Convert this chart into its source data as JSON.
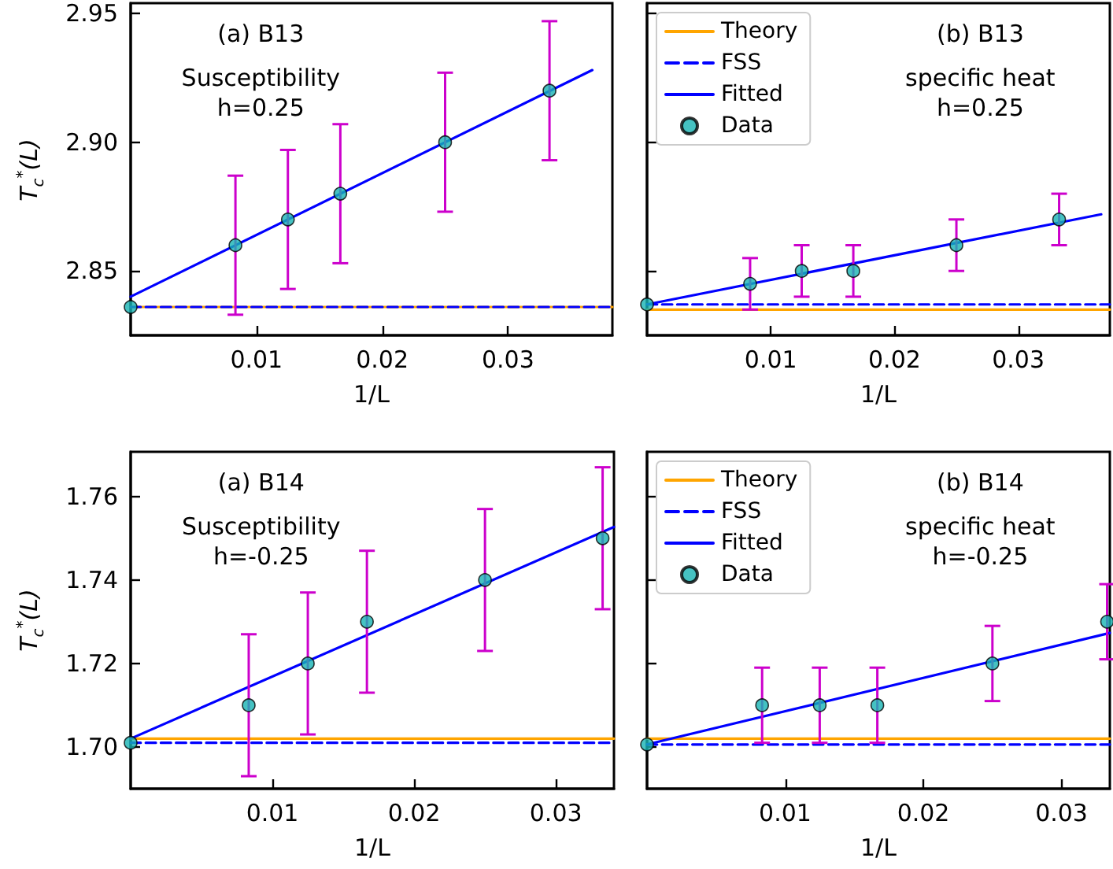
{
  "chart_data": [
    {
      "type": "line",
      "annotations": [
        "(a) B13",
        "Susceptibility",
        "h=0.25"
      ],
      "xlabel": "1/L",
      "ylabel": "T$_{c}$$^{*}$(L)",
      "xlim": [
        0,
        0.0383
      ],
      "xticks": [
        0.01,
        0.02,
        0.03
      ],
      "ylim": [
        2.825,
        2.954
      ],
      "yticks": [
        {
          "value": 2.85,
          "label": "2.85"
        },
        {
          "value": 2.9,
          "label": "2.90"
        },
        {
          "value": 2.95,
          "label": "2.95"
        }
      ],
      "series": [
        {
          "type": "line",
          "color": "#ffa500",
          "line_style": "solid",
          "x": [
            0,
            0.0383
          ],
          "values": [
            2.836,
            2.836
          ]
        },
        {
          "type": "line",
          "color": "#0000ff",
          "line_style": "dashed",
          "x": [
            0,
            0.0383
          ],
          "values": [
            2.836,
            2.836
          ]
        },
        {
          "type": "line",
          "color": "#0000ff",
          "line_style": "solid",
          "x": [
            0,
            0.0367
          ],
          "values": [
            2.84,
            2.928
          ]
        },
        {
          "type": "scatter",
          "color": "#17b3b3",
          "marker": "circle",
          "x": [
            0,
            0.00833,
            0.0125,
            0.01667,
            0.025,
            0.0333
          ],
          "values": [
            2.836,
            2.86,
            2.87,
            2.88,
            2.9,
            2.92
          ],
          "errors": [
            null,
            0.027,
            0.027,
            0.027,
            0.027,
            0.027
          ]
        }
      ]
    },
    {
      "type": "line",
      "annotations": [
        "(b) B13",
        "specific heat",
        "h=0.25"
      ],
      "xlabel": "1/L",
      "xlim": [
        0,
        0.0374
      ],
      "xticks": [
        0.01,
        0.02,
        0.03
      ],
      "ylim": [
        2.825,
        2.954
      ],
      "yticks": [
        {
          "value": 2.85,
          "label": null
        },
        {
          "value": 2.9,
          "label": null
        },
        {
          "value": 2.95,
          "label": null
        }
      ],
      "tick_labels": "x",
      "legend": "top left",
      "series": [
        {
          "name": "Theory",
          "type": "line",
          "color": "#ffa500",
          "line_style": "solid",
          "x": [
            0,
            0.0374
          ],
          "values": [
            2.835,
            2.835
          ]
        },
        {
          "name": "FSS",
          "type": "line",
          "color": "#0000ff",
          "line_style": "dashed",
          "x": [
            0,
            0.0374
          ],
          "values": [
            2.837,
            2.837
          ]
        },
        {
          "name": "Fitted",
          "type": "line",
          "color": "#0000ff",
          "line_style": "solid",
          "x": [
            0,
            0.0367
          ],
          "values": [
            2.837,
            2.872
          ]
        },
        {
          "name": "Data",
          "type": "scatter",
          "color": "#17b3b3",
          "marker": "circle",
          "x": [
            0,
            0.00833,
            0.0125,
            0.01667,
            0.025,
            0.0333
          ],
          "values": [
            2.837,
            2.845,
            2.85,
            2.85,
            2.86,
            2.87
          ],
          "errors": [
            null,
            0.01,
            0.01,
            0.01,
            0.01,
            0.01
          ]
        }
      ]
    },
    {
      "type": "line",
      "annotations": [
        "(a) B14",
        "Susceptibility",
        "h=-0.25"
      ],
      "xlabel": "1/L",
      "ylabel": "T$_{c}$$^{*}$(L)",
      "xlim": [
        0,
        0.0341
      ],
      "xticks": [
        0.01,
        0.02,
        0.03
      ],
      "ylim": [
        1.69,
        1.7707
      ],
      "yticks": [
        {
          "value": 1.7,
          "label": "1.70"
        },
        {
          "value": 1.72,
          "label": "1.72"
        },
        {
          "value": 1.74,
          "label": "1.74"
        },
        {
          "value": 1.76,
          "label": "1.76"
        }
      ],
      "series": [
        {
          "type": "line",
          "color": "#ffa500",
          "line_style": "solid",
          "x": [
            0,
            0.0341
          ],
          "values": [
            1.702,
            1.702
          ]
        },
        {
          "type": "line",
          "color": "#0000ff",
          "line_style": "dashed",
          "x": [
            0,
            0.0341
          ],
          "values": [
            1.701,
            1.701
          ]
        },
        {
          "type": "line",
          "color": "#0000ff",
          "line_style": "solid",
          "x": [
            0,
            0.0341
          ],
          "values": [
            1.702,
            1.7527
          ]
        },
        {
          "type": "scatter",
          "color": "#17b3b3",
          "marker": "circle",
          "x": [
            0,
            0.00833,
            0.0125,
            0.01667,
            0.025,
            0.0333
          ],
          "values": [
            1.701,
            1.71,
            1.72,
            1.73,
            1.74,
            1.75
          ],
          "errors": [
            null,
            0.017,
            0.017,
            0.017,
            0.017,
            0.017
          ]
        }
      ]
    },
    {
      "type": "line",
      "annotations": [
        "(b) B14",
        "specific heat",
        "h=-0.25"
      ],
      "xlabel": "1/L",
      "xlim": [
        0,
        0.0335
      ],
      "xticks": [
        0.01,
        0.02,
        0.03
      ],
      "ylim": [
        1.69,
        1.7707
      ],
      "yticks": [
        {
          "value": 1.7,
          "label": null
        },
        {
          "value": 1.72,
          "label": null
        },
        {
          "value": 1.74,
          "label": null
        },
        {
          "value": 1.76,
          "label": null
        }
      ],
      "tick_labels": "x",
      "legend": "top left",
      "series": [
        {
          "name": "Theory",
          "type": "line",
          "color": "#ffa500",
          "line_style": "solid",
          "x": [
            0,
            0.0335
          ],
          "values": [
            1.702,
            1.702
          ]
        },
        {
          "name": "FSS",
          "type": "line",
          "color": "#0000ff",
          "line_style": "dashed",
          "x": [
            0,
            0.0335
          ],
          "values": [
            1.7006,
            1.7006
          ]
        },
        {
          "name": "Fitted",
          "type": "line",
          "color": "#0000ff",
          "line_style": "solid",
          "x": [
            0,
            0.0335
          ],
          "values": [
            1.7006,
            1.7273
          ]
        },
        {
          "name": "Data",
          "type": "scatter",
          "color": "#17b3b3",
          "marker": "circle",
          "x": [
            0,
            0.00833,
            0.0125,
            0.01667,
            0.025,
            0.0333
          ],
          "values": [
            1.7006,
            1.71,
            1.71,
            1.71,
            1.72,
            1.73
          ],
          "errors": [
            null,
            0.009,
            0.009,
            0.009,
            0.009,
            0.009
          ]
        }
      ]
    }
  ]
}
